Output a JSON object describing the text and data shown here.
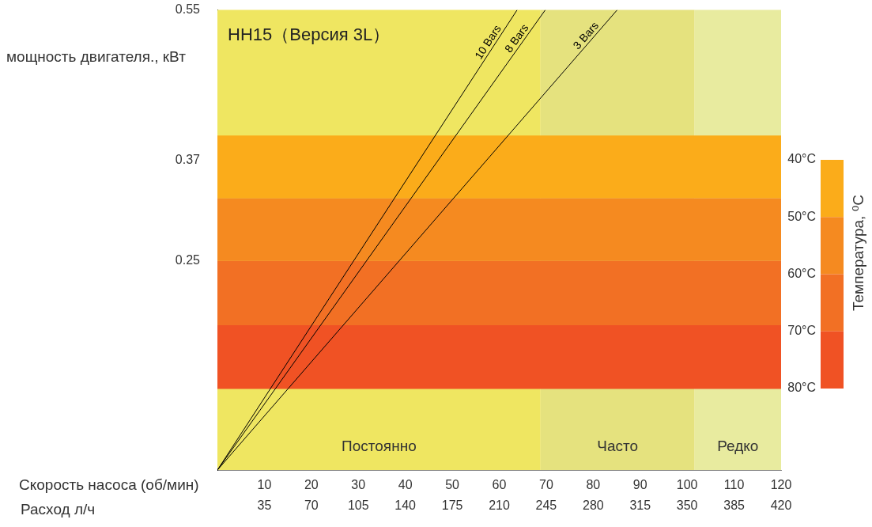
{
  "chart_data": {
    "type": "line",
    "title": "HH15（Версия 3L）",
    "ylabel": "мощность двигателя., кВт",
    "xlabel": "Скорость насоса (об/мин)",
    "x2label": "Расход л/ч",
    "clabel": "Температура, ⁰C",
    "series": [
      {
        "name": "10 Bars",
        "color": "#000000",
        "x": [
          0,
          63.8
        ],
        "values": [
          0,
          0.55
        ]
      },
      {
        "name": "8 Bars",
        "color": "#000000",
        "x": [
          0,
          69.8
        ],
        "values": [
          0,
          0.55
        ]
      },
      {
        "name": "3 Bars",
        "color": "#000000",
        "x": [
          0,
          85.1
        ],
        "values": [
          0,
          0.55
        ]
      }
    ],
    "xlim": [
      0,
      120
    ],
    "xticks": [
      10,
      20,
      30,
      40,
      50,
      60,
      70,
      80,
      90,
      100,
      110,
      120
    ],
    "x2lim": [
      0,
      420
    ],
    "x2ticks": [
      35,
      70,
      105,
      140,
      175,
      210,
      245,
      280,
      315,
      350,
      385,
      420
    ],
    "ylim": [
      0,
      0.55
    ],
    "yticks": [
      0.25,
      0.37,
      0.55
    ],
    "clim": [
      40,
      80
    ],
    "cticks": [
      {
        "value": 40,
        "label": "40°C"
      },
      {
        "value": 50,
        "label": "50°C"
      },
      {
        "value": 60,
        "label": "60°C"
      },
      {
        "value": 70,
        "label": "70°C"
      },
      {
        "value": 80,
        "label": "80°C"
      }
    ],
    "bands": [
      {
        "axis": "x",
        "from": 0,
        "to": 68.8,
        "label": "Постоянно",
        "color": "#efe661"
      },
      {
        "axis": "x",
        "from": 68.8,
        "to": 101.6,
        "label": "Часто",
        "color": "#e5e27e"
      },
      {
        "axis": "x",
        "from": 101.6,
        "to": 120,
        "label": "Редко",
        "color": "#e8eb9f"
      },
      {
        "axis": "y",
        "from": 0.325,
        "to": 0.4,
        "color": "#fbac1a"
      },
      {
        "axis": "y",
        "from": 0.25,
        "to": 0.325,
        "color": "#f58a20"
      },
      {
        "axis": "y",
        "from": 0.173,
        "to": 0.25,
        "color": "#f27024"
      },
      {
        "axis": "y",
        "from": 0.097,
        "to": 0.173,
        "color": "#f05224"
      }
    ],
    "grid": false,
    "legend": false,
    "marker": "none",
    "line_style": "solid"
  }
}
